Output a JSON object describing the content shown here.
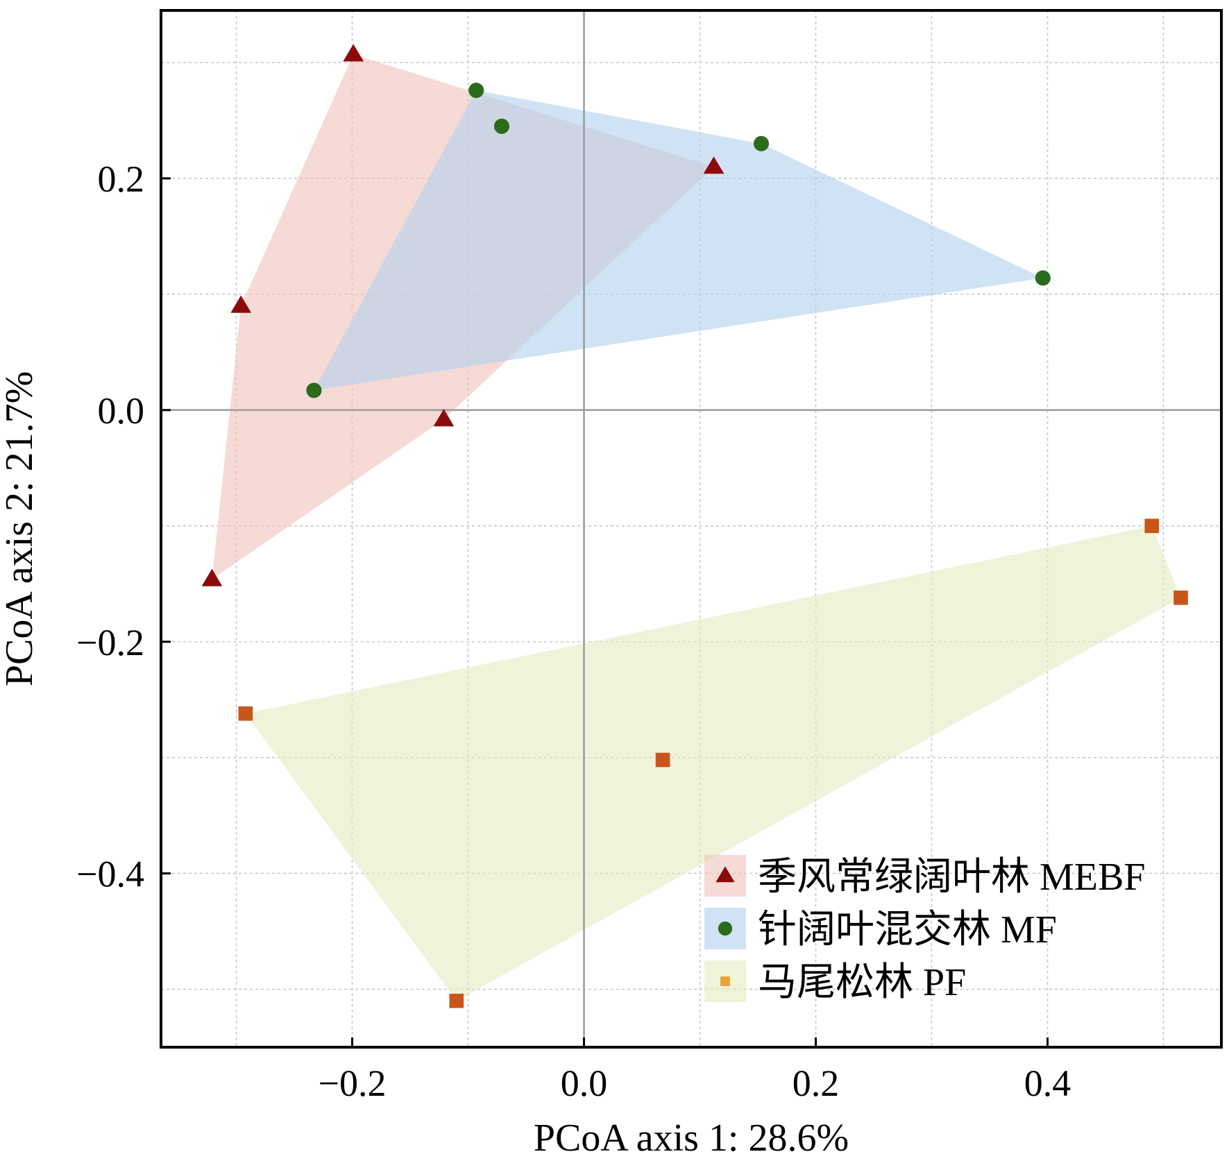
{
  "chart_data": {
    "type": "scatter",
    "xlabel": "PCoA axis 1: 28.6%",
    "ylabel": "PCoA axis 2: 21.7%",
    "xlim": [
      -0.365,
      0.55
    ],
    "ylim": [
      -0.55,
      0.345
    ],
    "xticks": [
      -0.2,
      0.0,
      0.2,
      0.4
    ],
    "yticks": [
      -0.4,
      -0.2,
      0.0,
      0.2
    ],
    "xtick_labels": [
      "−0.2",
      "0.0",
      "0.2",
      "0.4"
    ],
    "ytick_labels": [
      "−0.4",
      "−0.2",
      "0.0",
      "0.2"
    ],
    "x_gridlines": [
      -0.3,
      -0.2,
      -0.1,
      0.0,
      0.1,
      0.2,
      0.3,
      0.4,
      0.5
    ],
    "y_gridlines": [
      -0.5,
      -0.4,
      -0.3,
      -0.2,
      -0.1,
      0.0,
      0.1,
      0.2,
      0.3
    ],
    "grid": true,
    "reference_lines": {
      "x": 0.0,
      "y": 0.0
    },
    "legend_position": "bottom-right",
    "series": [
      {
        "name": "季风常绿阔叶林 MEBF",
        "marker": "triangle",
        "color": "#8b0a0a",
        "hull_color": "#f1c4bd",
        "points": [
          {
            "x": -0.199,
            "y": 0.307
          },
          {
            "x": 0.112,
            "y": 0.21
          },
          {
            "x": -0.296,
            "y": 0.09
          },
          {
            "x": -0.121,
            "y": -0.008
          },
          {
            "x": -0.321,
            "y": -0.146
          }
        ],
        "hull": [
          0,
          1,
          3,
          4,
          2
        ]
      },
      {
        "name": "针阔叶混交林 MF",
        "marker": "circle",
        "color": "#2b6b1c",
        "hull_color": "#b3d2ef",
        "points": [
          {
            "x": -0.093,
            "y": 0.276
          },
          {
            "x": -0.071,
            "y": 0.245
          },
          {
            "x": 0.153,
            "y": 0.23
          },
          {
            "x": 0.396,
            "y": 0.114
          },
          {
            "x": -0.233,
            "y": 0.017
          }
        ],
        "hull": [
          0,
          2,
          3,
          4
        ]
      },
      {
        "name": "马尾松林 PF",
        "marker": "square",
        "color": "#c8561a",
        "legend_color": "#e8a23a",
        "hull_color": "#e4ebc4",
        "points": [
          {
            "x": 0.49,
            "y": -0.1
          },
          {
            "x": 0.515,
            "y": -0.162
          },
          {
            "x": -0.292,
            "y": -0.262
          },
          {
            "x": 0.068,
            "y": -0.302
          },
          {
            "x": -0.11,
            "y": -0.51
          }
        ],
        "hull": [
          0,
          1,
          4,
          2
        ]
      }
    ]
  }
}
